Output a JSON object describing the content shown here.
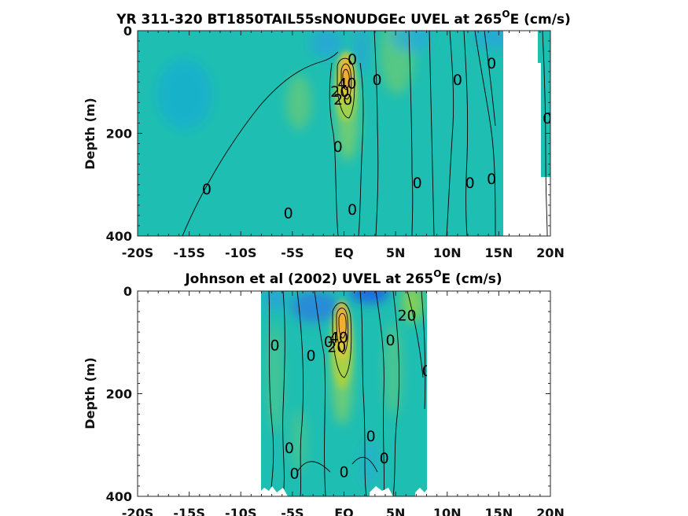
{
  "figure": {
    "panel_top": {
      "title": "YR 311-320 BT1850TAIL55sNONUDGEc UVEL at 265",
      "title_sup": "O",
      "title_tail": "E (cm/s)",
      "ylabel": "Depth (m)"
    },
    "panel_bottom": {
      "title": "Johnson et al (2002) UVEL at 265",
      "title_sup": "O",
      "title_tail": "E (cm/s)",
      "ylabel": "Depth (m)"
    }
  },
  "chart_data": [
    {
      "type": "heatmap",
      "title": "YR 311-320 BT1850TAIL55sNONUDGEc UVEL at 265°E (cm/s)",
      "xlabel": "",
      "ylabel": "Depth (m)",
      "xlim": [
        -20,
        20
      ],
      "ylim": [
        400,
        0
      ],
      "x_ticks": [
        -20,
        -15,
        -10,
        -5,
        0,
        5,
        10,
        15,
        20
      ],
      "x_tick_labels": [
        "-20S",
        "-15S",
        "-10S",
        "-5S",
        "EQ",
        "5N",
        "10N",
        "15N",
        "20N"
      ],
      "y_ticks": [
        0,
        200,
        400
      ],
      "y_tick_labels": [
        "0",
        "200",
        "400"
      ],
      "data_extent_x": [
        -20,
        20
      ],
      "contour_labels": [
        {
          "text": "0",
          "x": 0.8,
          "y": 55
        },
        {
          "text": "0",
          "x": 3.2,
          "y": 95
        },
        {
          "text": "0",
          "x": 11.0,
          "y": 95
        },
        {
          "text": "0",
          "x": 14.3,
          "y": 63
        },
        {
          "text": "20",
          "x": -0.4,
          "y": 118
        },
        {
          "text": "40",
          "x": 0.3,
          "y": 102
        },
        {
          "text": "20",
          "x": -0.1,
          "y": 133
        },
        {
          "text": "0",
          "x": -0.6,
          "y": 225
        },
        {
          "text": "0",
          "x": -13.3,
          "y": 308
        },
        {
          "text": "0",
          "x": -5.4,
          "y": 355
        },
        {
          "text": "0",
          "x": 0.8,
          "y": 348
        },
        {
          "text": "0",
          "x": 7.1,
          "y": 296
        },
        {
          "text": "0",
          "x": 12.2,
          "y": 296
        },
        {
          "text": "0",
          "x": 14.3,
          "y": 288
        },
        {
          "text": "0",
          "x": 19.7,
          "y": 170
        }
      ],
      "velocity_field": {
        "core_max_cm_s": 60,
        "core_x": 0.2,
        "core_depth": 95,
        "westward_surface_min_cm_s": -30,
        "background_cm_s": 0
      }
    },
    {
      "type": "heatmap",
      "title": "Johnson et al (2002) UVEL at 265°E (cm/s)",
      "xlabel": "",
      "ylabel": "Depth (m)",
      "xlim": [
        -20,
        20
      ],
      "ylim": [
        400,
        0
      ],
      "x_ticks": [
        -20,
        -15,
        -10,
        -5,
        0,
        5,
        10,
        15,
        20
      ],
      "x_tick_labels": [
        "-20S",
        "-15S",
        "-10S",
        "-5S",
        "EQ",
        "5N",
        "10N",
        "15N",
        "20N"
      ],
      "y_ticks": [
        0,
        200,
        400
      ],
      "y_tick_labels": [
        "0",
        "200",
        "400"
      ],
      "data_extent_x": [
        -8,
        8
      ],
      "contour_labels": [
        {
          "text": "0",
          "x": -6.7,
          "y": 105
        },
        {
          "text": "0",
          "x": -3.2,
          "y": 125
        },
        {
          "text": "0",
          "x": -1.5,
          "y": 98
        },
        {
          "text": "40",
          "x": -0.5,
          "y": 90
        },
        {
          "text": "20",
          "x": -0.7,
          "y": 108
        },
        {
          "text": "20",
          "x": 6.1,
          "y": 47
        },
        {
          "text": "0",
          "x": 4.5,
          "y": 95
        },
        {
          "text": "0",
          "x": 8.0,
          "y": 155
        },
        {
          "text": "0",
          "x": -5.3,
          "y": 305
        },
        {
          "text": "0",
          "x": -4.8,
          "y": 355
        },
        {
          "text": "0",
          "x": 2.6,
          "y": 282
        },
        {
          "text": "0",
          "x": 3.9,
          "y": 325
        },
        {
          "text": "0",
          "x": 0.0,
          "y": 352
        }
      ],
      "velocity_field": {
        "core_max_cm_s": 70,
        "core_x": 0.0,
        "core_depth": 65,
        "westward_surface_min_cm_s": -40,
        "background_cm_s": 0
      }
    }
  ]
}
